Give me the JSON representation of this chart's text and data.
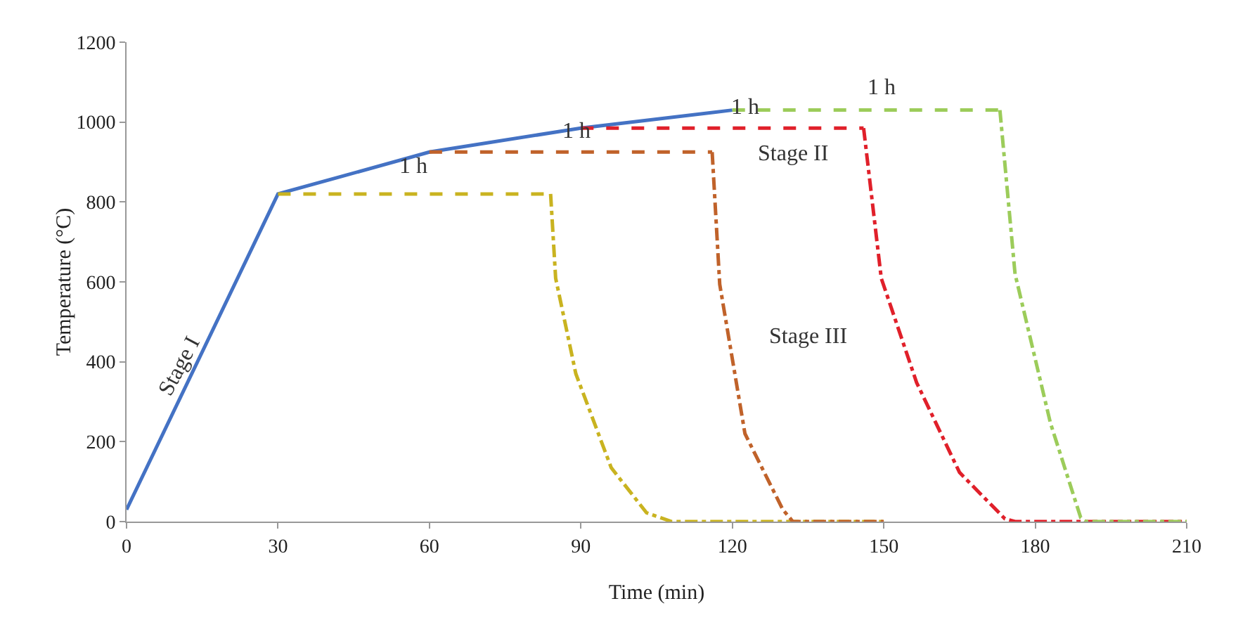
{
  "chart_data": {
    "type": "line",
    "xlabel": "Time (min)",
    "ylabel": "Temperature (°C)",
    "xlim": [
      0,
      210
    ],
    "xticks": [
      0,
      30,
      60,
      90,
      120,
      150,
      180,
      210
    ],
    "ylim": [
      0,
      1200
    ],
    "yticks": [
      0,
      200,
      400,
      600,
      800,
      1000,
      1200
    ],
    "grid": false,
    "marker": "none",
    "series": [
      {
        "color": "#4472c4",
        "line_style": "solid",
        "x": [
          0,
          30,
          60,
          90,
          120
        ],
        "values": [
          30,
          820,
          925,
          985,
          1030
        ]
      },
      {
        "color": "#c9b320",
        "line_style": "dashed",
        "x": [
          30,
          84
        ],
        "values": [
          820,
          820
        ]
      },
      {
        "color": "#c9b320",
        "line_style": "dashdot",
        "x": [
          84,
          85,
          89,
          96,
          103,
          108,
          150
        ],
        "values": [
          820,
          609,
          370,
          135,
          22,
          0,
          0
        ]
      },
      {
        "color": "#c0622a",
        "line_style": "dashed",
        "x": [
          60,
          116
        ],
        "values": [
          925,
          925
        ]
      },
      {
        "color": "#c0622a",
        "line_style": "dashdot",
        "x": [
          116,
          117.5,
          122.5,
          130,
          132,
          150
        ],
        "values": [
          925,
          594,
          220,
          30,
          0,
          0
        ]
      },
      {
        "color": "#e0202a",
        "line_style": "dashed",
        "x": [
          90,
          146
        ],
        "values": [
          985,
          985
        ]
      },
      {
        "color": "#e0202a",
        "line_style": "dashdot",
        "x": [
          146,
          149.5,
          156.5,
          165,
          174,
          176,
          210
        ],
        "values": [
          985,
          609,
          348,
          123,
          7,
          0,
          0
        ]
      },
      {
        "color": "#9ccc5a",
        "line_style": "dashed",
        "x": [
          120,
          173
        ],
        "values": [
          1030,
          1030
        ]
      },
      {
        "color": "#9ccc5a",
        "line_style": "dashdot",
        "x": [
          173,
          176,
          183,
          189,
          190,
          210
        ],
        "values": [
          1030,
          620,
          247,
          10,
          0,
          0
        ]
      }
    ],
    "annotations": [
      "Stage I",
      "1 h",
      "1 h",
      "1 h",
      "1 h",
      "Stage II",
      "Stage III"
    ]
  }
}
